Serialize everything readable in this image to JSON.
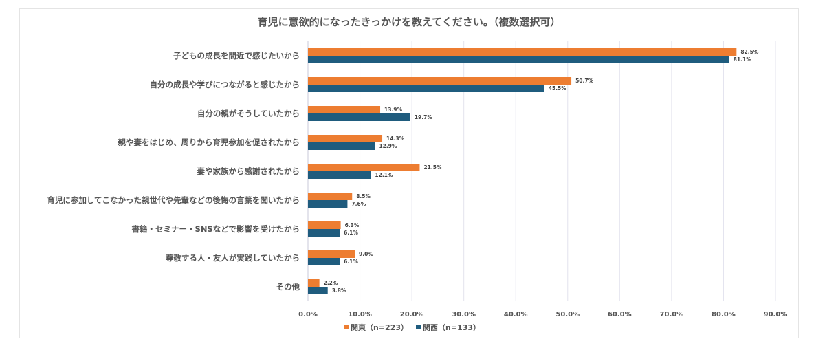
{
  "chart_data": {
    "type": "bar",
    "orientation": "horizontal",
    "title": "育児に意欲的になったきっかけを教えてください。（複数選択可）",
    "categories": [
      "子どもの成長を間近で感じたいから",
      "自分の成長や学びにつながると感じたから",
      "自分の親がそうしていたから",
      "親や妻をはじめ、周りから育児参加を促されたから",
      "妻や家族から感謝されたから",
      "育児に参加してこなかった親世代や先輩などの後悔の言葉を聞いたから",
      "書籍・セミナー・SNSなどで影響を受けたから",
      "尊敬する人・友人が実践していたから",
      "その他"
    ],
    "series": [
      {
        "name": "関東（n=223）",
        "color": "#ED7D31",
        "values": [
          82.5,
          50.7,
          13.9,
          14.3,
          21.5,
          8.5,
          6.3,
          9.0,
          2.2
        ],
        "labels": [
          "82.5%",
          "50.7%",
          "13.9%",
          "14.3%",
          "21.5%",
          "8.5%",
          "6.3%",
          "9.0%",
          "2.2%"
        ]
      },
      {
        "name": "関西（n=133）",
        "color": "#1F5C7E",
        "values": [
          81.1,
          45.5,
          19.7,
          12.9,
          12.1,
          7.6,
          6.1,
          6.1,
          3.8
        ],
        "labels": [
          "81.1%",
          "45.5%",
          "19.7%",
          "12.9%",
          "12.1%",
          "7.6%",
          "6.1%",
          "6.1%",
          "3.8%"
        ]
      }
    ],
    "xlim": [
      0,
      90
    ],
    "xticks": [
      "0.0%",
      "10.0%",
      "20.0%",
      "30.0%",
      "40.0%",
      "50.0%",
      "60.0%",
      "70.0%",
      "80.0%",
      "90.0%"
    ],
    "grid": true,
    "legend_position": "bottom"
  }
}
